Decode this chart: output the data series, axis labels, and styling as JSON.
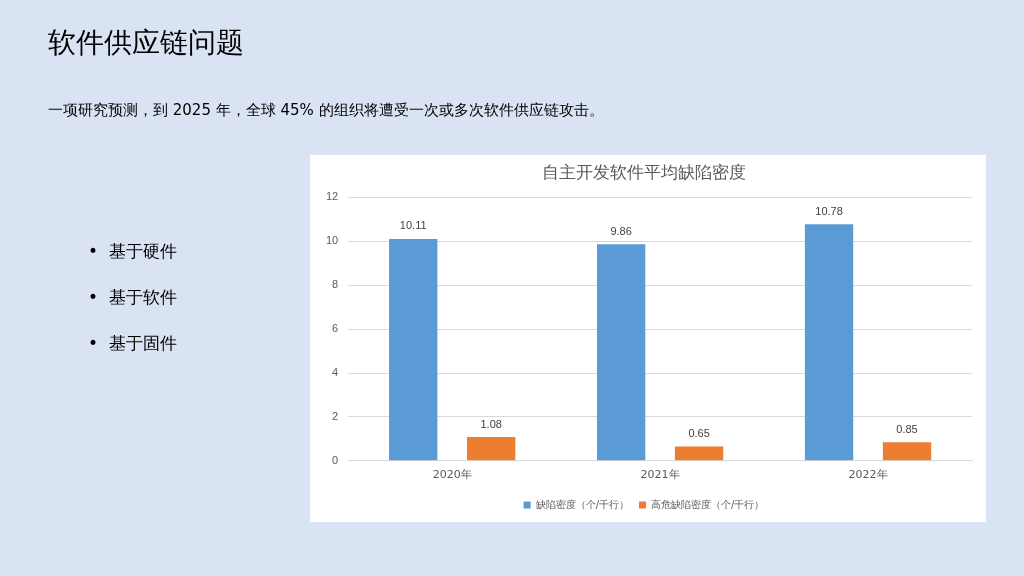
{
  "chart_data": {
    "type": "bar",
    "title": "自主开发软件平均缺陷密度",
    "categories": [
      "2020年",
      "2021年",
      "2022年"
    ],
    "series": [
      {
        "name": "缺陷密度（个/千行）",
        "color": "#5b9bd5",
        "values": [
          10.11,
          9.86,
          10.78
        ]
      },
      {
        "name": "高危缺陷密度（个/千行）",
        "color": "#ed7d31",
        "values": [
          1.08,
          0.65,
          0.85
        ]
      }
    ],
    "ylim": [
      0,
      12
    ],
    "yticks": [
      0,
      2,
      4,
      6,
      8,
      10,
      12
    ],
    "grid": "y",
    "legend": "bottom",
    "data_labels": true,
    "annotations": [
      "软件供应链问题",
      "一项研究预测，到 2025 年，全球 45% 的组织将遭受一次或多次软件供应链攻击。",
      "•  基于硬件",
      "•  基于软件",
      "•  基于固件"
    ]
  }
}
